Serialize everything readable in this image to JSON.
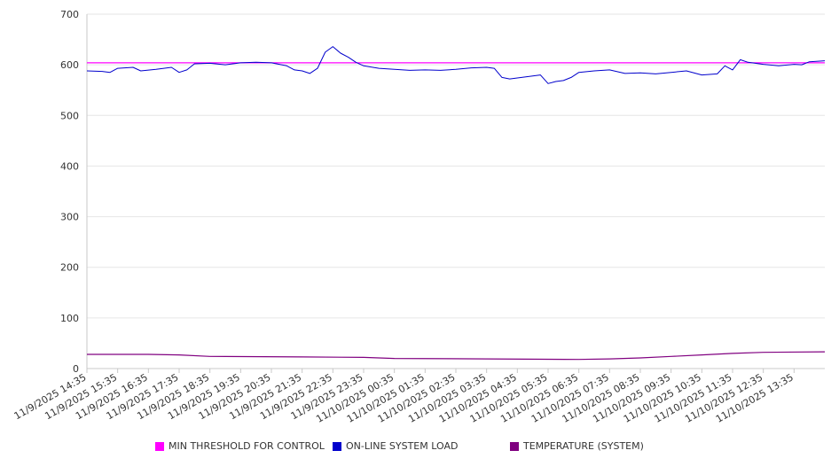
{
  "chart_data": {
    "type": "line",
    "title": "",
    "xlabel": "",
    "ylabel": "",
    "ylim": [
      0,
      700
    ],
    "yticks": [
      0,
      100,
      200,
      300,
      400,
      500,
      600,
      700
    ],
    "grid": true,
    "legend_position": "bottom",
    "x_tick_labels": [
      "11/9/2025 14:35",
      "11/9/2025 15:35",
      "11/9/2025 16:35",
      "11/9/2025 17:35",
      "11/9/2025 18:35",
      "11/9/2025 19:35",
      "11/9/2025 20:35",
      "11/9/2025 21:35",
      "11/9/2025 22:35",
      "11/9/2025 23:35",
      "11/10/2025 00:35",
      "11/10/2025 01:35",
      "11/10/2025 02:35",
      "11/10/2025 03:35",
      "11/10/2025 04:35",
      "11/10/2025 05:35",
      "11/10/2025 06:35",
      "11/10/2025 07:35",
      "11/10/2025 08:35",
      "11/10/2025 09:35",
      "11/10/2025 10:35",
      "11/10/2025 11:35",
      "11/10/2025 12:35",
      "11/10/2025 13:35"
    ],
    "x_range": [
      "11/9/2025 14:35",
      "11/10/2025 14:35"
    ],
    "series": [
      {
        "name": "MIN THRESHOLD FOR CONTROL",
        "color": "#ff00ff",
        "points": [
          [
            "11/9/2025 14:35",
            604
          ],
          [
            "11/10/2025 14:35",
            604
          ]
        ]
      },
      {
        "name": "ON-LINE SYSTEM LOAD",
        "color": "#0000cc",
        "points": [
          [
            "11/9/2025 14:35",
            588
          ],
          [
            "11/9/2025 15:05",
            587
          ],
          [
            "11/9/2025 15:20",
            585
          ],
          [
            "11/9/2025 15:35",
            593
          ],
          [
            "11/9/2025 16:05",
            595
          ],
          [
            "11/9/2025 16:20",
            588
          ],
          [
            "11/9/2025 16:50",
            591
          ],
          [
            "11/9/2025 17:05",
            593
          ],
          [
            "11/9/2025 17:20",
            595
          ],
          [
            "11/9/2025 17:35",
            585
          ],
          [
            "11/9/2025 17:50",
            590
          ],
          [
            "11/9/2025 18:05",
            602
          ],
          [
            "11/9/2025 18:35",
            603
          ],
          [
            "11/9/2025 19:05",
            600
          ],
          [
            "11/9/2025 19:35",
            604
          ],
          [
            "11/9/2025 20:05",
            605
          ],
          [
            "11/9/2025 20:35",
            604
          ],
          [
            "11/9/2025 21:05",
            598
          ],
          [
            "11/9/2025 21:20",
            590
          ],
          [
            "11/9/2025 21:35",
            588
          ],
          [
            "11/9/2025 21:50",
            583
          ],
          [
            "11/9/2025 22:05",
            593
          ],
          [
            "11/9/2025 22:20",
            625
          ],
          [
            "11/9/2025 22:35",
            636
          ],
          [
            "11/9/2025 22:50",
            623
          ],
          [
            "11/9/2025 23:05",
            615
          ],
          [
            "11/9/2025 23:20",
            605
          ],
          [
            "11/9/2025 23:35",
            598
          ],
          [
            "11/10/2025 00:05",
            593
          ],
          [
            "11/10/2025 00:35",
            591
          ],
          [
            "11/10/2025 01:05",
            589
          ],
          [
            "11/10/2025 01:35",
            590
          ],
          [
            "11/10/2025 02:05",
            589
          ],
          [
            "11/10/2025 02:35",
            591
          ],
          [
            "11/10/2025 03:05",
            594
          ],
          [
            "11/10/2025 03:35",
            595
          ],
          [
            "11/10/2025 03:50",
            593
          ],
          [
            "11/10/2025 04:05",
            575
          ],
          [
            "11/10/2025 04:20",
            572
          ],
          [
            "11/10/2025 04:35",
            574
          ],
          [
            "11/10/2025 05:05",
            578
          ],
          [
            "11/10/2025 05:20",
            580
          ],
          [
            "11/10/2025 05:35",
            563
          ],
          [
            "11/10/2025 05:50",
            567
          ],
          [
            "11/10/2025 06:05",
            569
          ],
          [
            "11/10/2025 06:20",
            575
          ],
          [
            "11/10/2025 06:35",
            585
          ],
          [
            "11/10/2025 07:05",
            588
          ],
          [
            "11/10/2025 07:35",
            590
          ],
          [
            "11/10/2025 08:05",
            583
          ],
          [
            "11/10/2025 08:35",
            584
          ],
          [
            "11/10/2025 09:05",
            582
          ],
          [
            "11/10/2025 09:35",
            585
          ],
          [
            "11/10/2025 10:05",
            588
          ],
          [
            "11/10/2025 10:35",
            580
          ],
          [
            "11/10/2025 11:05",
            582
          ],
          [
            "11/10/2025 11:20",
            598
          ],
          [
            "11/10/2025 11:35",
            590
          ],
          [
            "11/10/2025 11:50",
            610
          ],
          [
            "11/10/2025 12:05",
            605
          ],
          [
            "11/10/2025 12:35",
            601
          ],
          [
            "11/10/2025 13:05",
            598
          ],
          [
            "11/10/2025 13:35",
            601
          ],
          [
            "11/10/2025 13:50",
            600
          ],
          [
            "11/10/2025 14:05",
            606
          ],
          [
            "11/10/2025 14:35",
            608
          ]
        ]
      },
      {
        "name": "TEMPERATURE (SYSTEM)",
        "color": "#800080",
        "points": [
          [
            "11/9/2025 14:35",
            28
          ],
          [
            "11/9/2025 16:35",
            28
          ],
          [
            "11/9/2025 17:35",
            27
          ],
          [
            "11/9/2025 18:35",
            24
          ],
          [
            "11/9/2025 21:35",
            23
          ],
          [
            "11/9/2025 23:35",
            22
          ],
          [
            "11/10/2025 00:35",
            20
          ],
          [
            "11/10/2025 03:35",
            19
          ],
          [
            "11/10/2025 06:35",
            18
          ],
          [
            "11/10/2025 07:35",
            19
          ],
          [
            "11/10/2025 08:35",
            21
          ],
          [
            "11/10/2025 09:35",
            24
          ],
          [
            "11/10/2025 10:35",
            27
          ],
          [
            "11/10/2025 11:35",
            30
          ],
          [
            "11/10/2025 12:35",
            32
          ],
          [
            "11/10/2025 14:35",
            33
          ]
        ]
      }
    ]
  },
  "colors": {
    "grid": "#e6e6e6",
    "axis": "#c8c8c8",
    "text": "#333333"
  }
}
